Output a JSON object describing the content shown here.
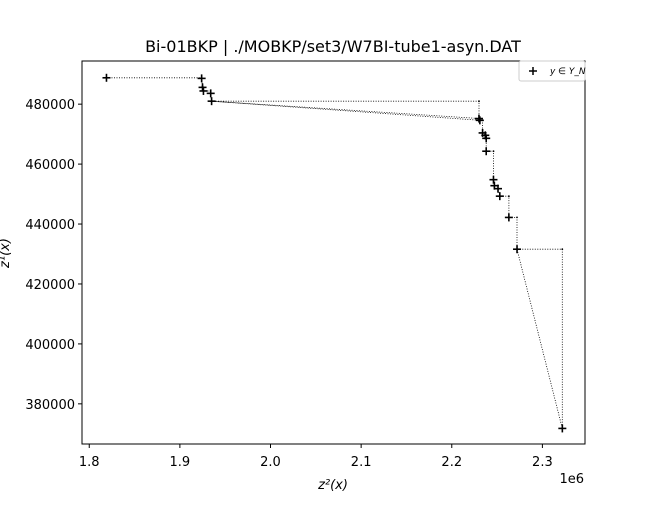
{
  "chart_data": {
    "type": "scatter",
    "title": "Bi-01BKP | ./MOBKP/set3/W7BI-tube1-asyn.DAT",
    "xlabel": "z²(x)",
    "ylabel": "z¹(x)",
    "x_offset_label": "1e6",
    "x_ticks": [
      1.8,
      1.9,
      2.0,
      2.1,
      2.2,
      2.3
    ],
    "x_tick_labels": [
      "1.8",
      "1.9",
      "2.0",
      "2.1",
      "2.2",
      "2.3"
    ],
    "y_ticks": [
      380000,
      400000,
      420000,
      440000,
      460000,
      480000
    ],
    "y_tick_labels": [
      "380000",
      "400000",
      "420000",
      "440000",
      "460000",
      "480000"
    ],
    "xlim": [
      1.792,
      2.347
    ],
    "ylim": [
      366600,
      494400
    ],
    "grid": false,
    "legend_position": "top-right",
    "series": [
      {
        "name": "y ∈ Y_N",
        "marker": "plus",
        "color": "#000000",
        "points": [
          [
            1.819,
            488800
          ],
          [
            1.924,
            488600
          ],
          [
            1.925,
            485600
          ],
          [
            1.926,
            484400
          ],
          [
            1.934,
            483600
          ],
          [
            1.935,
            481000
          ],
          [
            2.23,
            475200
          ],
          [
            2.231,
            474600
          ],
          [
            2.234,
            470400
          ],
          [
            2.237,
            469600
          ],
          [
            2.238,
            468600
          ],
          [
            2.238,
            464300
          ],
          [
            2.246,
            454800
          ],
          [
            2.247,
            452800
          ],
          [
            2.251,
            451800
          ],
          [
            2.253,
            449300
          ],
          [
            2.263,
            442200
          ],
          [
            2.272,
            431600
          ],
          [
            2.322,
            371800
          ]
        ]
      }
    ],
    "dotted_path": [
      [
        1.819,
        488800
      ],
      [
        1.924,
        488800
      ],
      [
        1.924,
        488600
      ],
      [
        1.925,
        486000
      ],
      [
        1.926,
        484400
      ],
      [
        1.934,
        484400
      ],
      [
        1.934,
        483600
      ],
      [
        1.935,
        481000
      ],
      [
        2.23,
        481000
      ],
      [
        2.23,
        475200
      ],
      [
        1.935,
        481000
      ],
      [
        2.231,
        474600
      ],
      [
        2.234,
        474600
      ],
      [
        2.234,
        470400
      ],
      [
        2.237,
        469600
      ],
      [
        2.238,
        469600
      ],
      [
        2.238,
        468600
      ],
      [
        2.238,
        464300
      ],
      [
        2.246,
        464300
      ],
      [
        2.246,
        454800
      ],
      [
        2.247,
        452800
      ],
      [
        2.251,
        452800
      ],
      [
        2.251,
        451800
      ],
      [
        2.253,
        449300
      ],
      [
        2.263,
        449300
      ],
      [
        2.263,
        442200
      ],
      [
        2.272,
        442200
      ],
      [
        2.272,
        431600
      ],
      [
        2.322,
        431600
      ],
      [
        2.322,
        371800
      ],
      [
        2.272,
        431600
      ]
    ]
  }
}
